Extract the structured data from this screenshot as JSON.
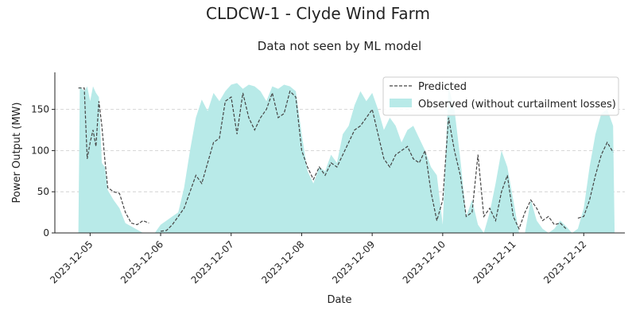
{
  "chart_data": {
    "type": "area",
    "title": "CLDCW-1 - Clyde Wind Farm",
    "subtitle": "Data not seen by ML model",
    "xlabel": "Date",
    "ylabel": "Power Output (MW)",
    "x_ticks": [
      "2023-12-05",
      "2023-12-06",
      "2023-12-07",
      "2023-12-08",
      "2023-12-09",
      "2023-12-10",
      "2023-12-11",
      "2023-12-12"
    ],
    "y_ticks": [
      0,
      50,
      100,
      150
    ],
    "xlim": [
      "2023-12-04 12:00",
      "2023-12-12 14:00"
    ],
    "ylim": [
      0,
      195
    ],
    "grid": "horizontal dashed",
    "legend_position": "top-right",
    "colors": {
      "observed_fill": "#b8eae8",
      "predicted_line": "#444444",
      "grid": "#cccccc"
    },
    "series": [
      {
        "name": "Observed (without curtailment losses)",
        "style": "area",
        "points": [
          [
            "2023-12-04 20:00",
            0
          ],
          [
            "2023-12-04 20:30",
            178
          ],
          [
            "2023-12-04 22:00",
            172
          ],
          [
            "2023-12-04 23:00",
            178
          ],
          [
            "2023-12-05 00:00",
            160
          ],
          [
            "2023-12-05 01:00",
            178
          ],
          [
            "2023-12-05 02:00",
            170
          ],
          [
            "2023-12-05 03:00",
            165
          ],
          [
            "2023-12-05 04:00",
            85
          ],
          [
            "2023-12-05 05:00",
            80
          ],
          [
            "2023-12-05 06:00",
            52
          ],
          [
            "2023-12-05 08:00",
            40
          ],
          [
            "2023-12-05 10:00",
            30
          ],
          [
            "2023-12-05 12:00",
            12
          ],
          [
            "2023-12-05 14:00",
            8
          ],
          [
            "2023-12-05 16:00",
            4
          ],
          [
            "2023-12-05 18:00",
            0
          ],
          [
            "2023-12-05 22:00",
            0
          ],
          [
            "2023-12-06 00:00",
            10
          ],
          [
            "2023-12-06 02:00",
            15
          ],
          [
            "2023-12-06 04:00",
            20
          ],
          [
            "2023-12-06 06:00",
            25
          ],
          [
            "2023-12-06 08:00",
            55
          ],
          [
            "2023-12-06 10:00",
            100
          ],
          [
            "2023-12-06 12:00",
            140
          ],
          [
            "2023-12-06 14:00",
            162
          ],
          [
            "2023-12-06 16:00",
            148
          ],
          [
            "2023-12-06 18:00",
            170
          ],
          [
            "2023-12-06 20:00",
            160
          ],
          [
            "2023-12-06 22:00",
            172
          ],
          [
            "2023-12-07 00:00",
            180
          ],
          [
            "2023-12-07 02:00",
            182
          ],
          [
            "2023-12-07 04:00",
            175
          ],
          [
            "2023-12-07 06:00",
            180
          ],
          [
            "2023-12-07 08:00",
            178
          ],
          [
            "2023-12-07 10:00",
            172
          ],
          [
            "2023-12-07 12:00",
            160
          ],
          [
            "2023-12-07 14:00",
            178
          ],
          [
            "2023-12-07 16:00",
            175
          ],
          [
            "2023-12-07 18:00",
            180
          ],
          [
            "2023-12-07 20:00",
            178
          ],
          [
            "2023-12-07 22:00",
            172
          ],
          [
            "2023-12-08 00:00",
            120
          ],
          [
            "2023-12-08 02:00",
            75
          ],
          [
            "2023-12-08 04:00",
            60
          ],
          [
            "2023-12-08 06:00",
            80
          ],
          [
            "2023-12-08 08:00",
            75
          ],
          [
            "2023-12-08 10:00",
            95
          ],
          [
            "2023-12-08 12:00",
            85
          ],
          [
            "2023-12-08 14:00",
            120
          ],
          [
            "2023-12-08 16:00",
            130
          ],
          [
            "2023-12-08 18:00",
            155
          ],
          [
            "2023-12-08 20:00",
            172
          ],
          [
            "2023-12-08 22:00",
            160
          ],
          [
            "2023-12-09 00:00",
            170
          ],
          [
            "2023-12-09 02:00",
            150
          ],
          [
            "2023-12-09 04:00",
            125
          ],
          [
            "2023-12-09 06:00",
            140
          ],
          [
            "2023-12-09 08:00",
            130
          ],
          [
            "2023-12-09 10:00",
            110
          ],
          [
            "2023-12-09 12:00",
            125
          ],
          [
            "2023-12-09 14:00",
            130
          ],
          [
            "2023-12-09 16:00",
            115
          ],
          [
            "2023-12-09 18:00",
            100
          ],
          [
            "2023-12-09 20:00",
            80
          ],
          [
            "2023-12-09 22:00",
            70
          ],
          [
            "2023-12-10 00:00",
            10
          ],
          [
            "2023-12-10 02:00",
            178
          ],
          [
            "2023-12-10 04:00",
            150
          ],
          [
            "2023-12-10 06:00",
            90
          ],
          [
            "2023-12-10 08:00",
            20
          ],
          [
            "2023-12-10 10:00",
            40
          ],
          [
            "2023-12-10 12:00",
            10
          ],
          [
            "2023-12-10 14:00",
            0
          ],
          [
            "2023-12-10 16:00",
            25
          ],
          [
            "2023-12-10 18:00",
            60
          ],
          [
            "2023-12-10 20:00",
            100
          ],
          [
            "2023-12-10 22:00",
            80
          ],
          [
            "2023-12-11 00:00",
            40
          ],
          [
            "2023-12-11 02:00",
            0
          ],
          [
            "2023-12-11 04:00",
            0
          ],
          [
            "2023-12-11 06:00",
            40
          ],
          [
            "2023-12-11 08:00",
            15
          ],
          [
            "2023-12-11 10:00",
            5
          ],
          [
            "2023-12-11 12:00",
            0
          ],
          [
            "2023-12-11 14:00",
            5
          ],
          [
            "2023-12-11 16:00",
            15
          ],
          [
            "2023-12-11 18:00",
            8
          ],
          [
            "2023-12-11 20:00",
            0
          ],
          [
            "2023-12-11 22:00",
            5
          ],
          [
            "2023-12-12 00:00",
            30
          ],
          [
            "2023-12-12 02:00",
            80
          ],
          [
            "2023-12-12 04:00",
            120
          ],
          [
            "2023-12-12 06:00",
            145
          ],
          [
            "2023-12-12 08:00",
            150
          ],
          [
            "2023-12-12 10:00",
            130
          ],
          [
            "2023-12-12 10:30",
            0
          ]
        ]
      },
      {
        "name": "Predicted",
        "style": "dashed-line",
        "segments": [
          [
            [
              "2023-12-04 20:00",
              176
            ],
            [
              "2023-12-04 22:00",
              176
            ],
            [
              "2023-12-04 23:00",
              90
            ],
            [
              "2023-12-05 00:00",
              110
            ],
            [
              "2023-12-05 01:00",
              125
            ],
            [
              "2023-12-05 02:00",
              105
            ],
            [
              "2023-12-05 03:00",
              160
            ],
            [
              "2023-12-05 04:00",
              130
            ],
            [
              "2023-12-05 05:00",
              90
            ],
            [
              "2023-12-05 06:00",
              55
            ],
            [
              "2023-12-05 08:00",
              50
            ],
            [
              "2023-12-05 10:00",
              48
            ],
            [
              "2023-12-05 12:00",
              25
            ],
            [
              "2023-12-05 14:00",
              12
            ],
            [
              "2023-12-05 16:00",
              10
            ],
            [
              "2023-12-05 18:00",
              15
            ],
            [
              "2023-12-05 20:00",
              12
            ]
          ],
          [
            [
              "2023-12-06 00:00",
              2
            ],
            [
              "2023-12-06 02:00",
              3
            ],
            [
              "2023-12-06 04:00",
              10
            ],
            [
              "2023-12-06 06:00",
              20
            ],
            [
              "2023-12-06 08:00",
              30
            ],
            [
              "2023-12-06 10:00",
              50
            ],
            [
              "2023-12-06 12:00",
              70
            ],
            [
              "2023-12-06 14:00",
              60
            ],
            [
              "2023-12-06 16:00",
              85
            ],
            [
              "2023-12-06 18:00",
              110
            ],
            [
              "2023-12-06 20:00",
              115
            ],
            [
              "2023-12-06 22:00",
              160
            ],
            [
              "2023-12-07 00:00",
              165
            ],
            [
              "2023-12-07 02:00",
              120
            ],
            [
              "2023-12-07 04:00",
              170
            ],
            [
              "2023-12-07 06:00",
              140
            ],
            [
              "2023-12-07 08:00",
              125
            ],
            [
              "2023-12-07 10:00",
              140
            ],
            [
              "2023-12-07 12:00",
              150
            ],
            [
              "2023-12-07 14:00",
              170
            ],
            [
              "2023-12-07 16:00",
              140
            ],
            [
              "2023-12-07 18:00",
              145
            ],
            [
              "2023-12-07 20:00",
              172
            ],
            [
              "2023-12-07 22:00",
              165
            ],
            [
              "2023-12-08 00:00",
              100
            ],
            [
              "2023-12-08 02:00",
              80
            ],
            [
              "2023-12-08 04:00",
              65
            ],
            [
              "2023-12-08 06:00",
              80
            ],
            [
              "2023-12-08 08:00",
              70
            ],
            [
              "2023-12-08 10:00",
              85
            ],
            [
              "2023-12-08 12:00",
              80
            ],
            [
              "2023-12-08 14:00",
              95
            ],
            [
              "2023-12-08 16:00",
              110
            ],
            [
              "2023-12-08 18:00",
              125
            ],
            [
              "2023-12-08 20:00",
              130
            ],
            [
              "2023-12-08 22:00",
              140
            ],
            [
              "2023-12-09 00:00",
              150
            ],
            [
              "2023-12-09 02:00",
              120
            ],
            [
              "2023-12-09 04:00",
              90
            ],
            [
              "2023-12-09 06:00",
              80
            ],
            [
              "2023-12-09 08:00",
              95
            ],
            [
              "2023-12-09 10:00",
              100
            ],
            [
              "2023-12-09 12:00",
              105
            ],
            [
              "2023-12-09 14:00",
              90
            ],
            [
              "2023-12-09 16:00",
              85
            ],
            [
              "2023-12-09 18:00",
              100
            ],
            [
              "2023-12-09 20:00",
              50
            ],
            [
              "2023-12-09 22:00",
              15
            ],
            [
              "2023-12-10 00:00",
              40
            ],
            [
              "2023-12-10 02:00",
              140
            ],
            [
              "2023-12-10 04:00",
              100
            ],
            [
              "2023-12-10 06:00",
              70
            ],
            [
              "2023-12-10 08:00",
              20
            ],
            [
              "2023-12-10 10:00",
              25
            ],
            [
              "2023-12-10 12:00",
              95
            ],
            [
              "2023-12-10 14:00",
              20
            ],
            [
              "2023-12-10 16:00",
              30
            ],
            [
              "2023-12-10 18:00",
              15
            ],
            [
              "2023-12-10 20:00",
              50
            ],
            [
              "2023-12-10 22:00",
              70
            ],
            [
              "2023-12-11 00:00",
              20
            ],
            [
              "2023-12-11 02:00",
              5
            ],
            [
              "2023-12-11 04:00",
              25
            ],
            [
              "2023-12-11 06:00",
              40
            ],
            [
              "2023-12-11 08:00",
              30
            ],
            [
              "2023-12-11 10:00",
              15
            ],
            [
              "2023-12-11 12:00",
              20
            ],
            [
              "2023-12-11 14:00",
              10
            ],
            [
              "2023-12-11 16:00",
              12
            ],
            [
              "2023-12-11 18:00",
              5
            ]
          ],
          [
            [
              "2023-12-11 22:00",
              18
            ],
            [
              "2023-12-12 00:00",
              20
            ],
            [
              "2023-12-12 02:00",
              40
            ],
            [
              "2023-12-12 04:00",
              70
            ],
            [
              "2023-12-12 06:00",
              95
            ],
            [
              "2023-12-12 08:00",
              110
            ],
            [
              "2023-12-12 10:00",
              98
            ]
          ]
        ]
      }
    ]
  }
}
